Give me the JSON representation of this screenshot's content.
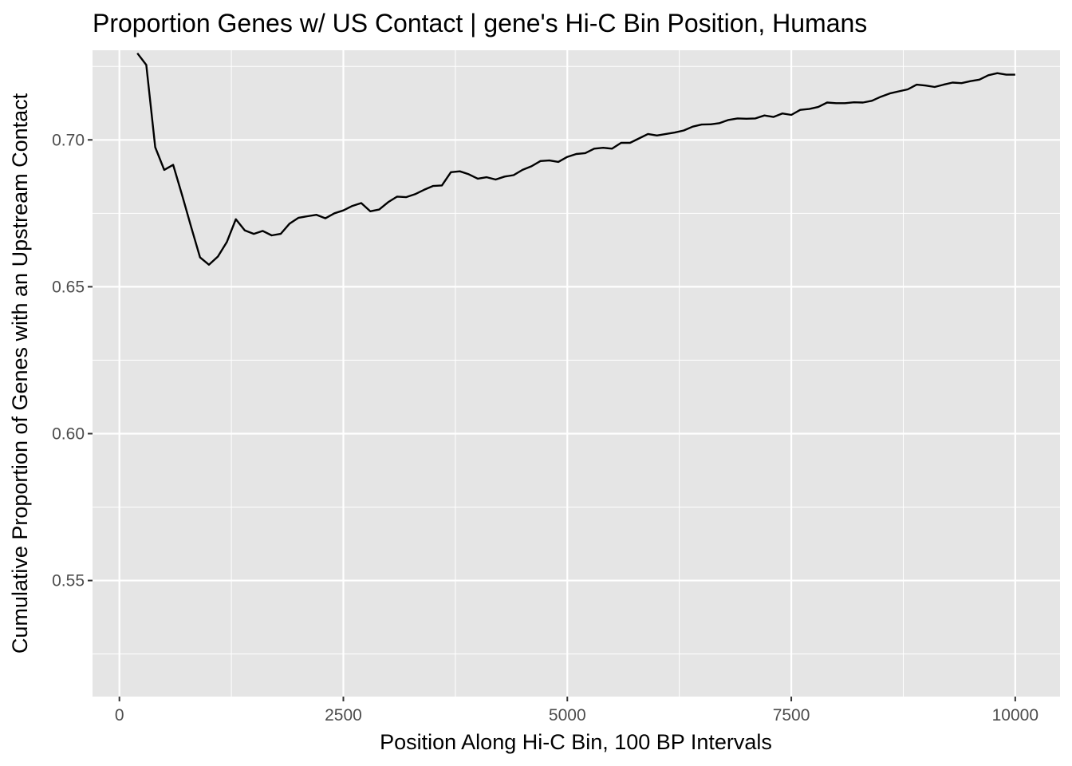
{
  "chart_data": {
    "type": "line",
    "title": "Proportion Genes w/ US Contact | gene's Hi-C Bin Position, Humans",
    "xlabel": "Position Along Hi-C Bin, 100 BP Intervals",
    "ylabel": "Cumulative Proportion of Genes with an Upstream Contact",
    "xlim": [
      -300,
      10500
    ],
    "ylim": [
      0.5105,
      0.7305
    ],
    "x_ticks": [
      {
        "value": 0,
        "label": "0"
      },
      {
        "value": 2500,
        "label": "2500"
      },
      {
        "value": 5000,
        "label": "5000"
      },
      {
        "value": 7500,
        "label": "7500"
      },
      {
        "value": 10000,
        "label": "10000"
      }
    ],
    "y_ticks": [
      {
        "value": 0.55,
        "label": "0.55"
      },
      {
        "value": 0.6,
        "label": "0.60"
      },
      {
        "value": 0.65,
        "label": "0.65"
      },
      {
        "value": 0.7,
        "label": "0.70"
      }
    ],
    "grid": true,
    "colors": {
      "panel": "#e5e5e5",
      "grid": "#ffffff",
      "line": "#000000",
      "tick_label": "#4d4d4d"
    },
    "series": [
      {
        "x": [
          200,
          300,
          400,
          500,
          600,
          700,
          800,
          900,
          1000,
          1100,
          1200,
          1300,
          1400,
          1500,
          1600,
          1700,
          1800,
          1900,
          2000,
          2100,
          2200,
          2300,
          2400,
          2500,
          2600,
          2700,
          2800,
          2900,
          3000,
          3100,
          3200,
          3300,
          3400,
          3500,
          3600,
          3700,
          3800,
          3900,
          4000,
          4100,
          4200,
          4300,
          4400,
          4500,
          4600,
          4700,
          4800,
          4900,
          5000,
          5100,
          5200,
          5300,
          5400,
          5500,
          5600,
          5700,
          5800,
          5900,
          6000,
          6100,
          6200,
          6300,
          6400,
          6500,
          6600,
          6700,
          6800,
          6900,
          7000,
          7100,
          7200,
          7300,
          7400,
          7500,
          7600,
          7700,
          7800,
          7900,
          8000,
          8100,
          8200,
          8300,
          8400,
          8500,
          8600,
          8700,
          8800,
          8900,
          9000,
          9100,
          9200,
          9300,
          9400,
          9500,
          9600,
          9700,
          9800,
          9900,
          10000
        ],
        "y": [
          0.7295,
          0.7255,
          0.6975,
          0.6898,
          0.6915,
          0.6812,
          0.6705,
          0.66,
          0.6575,
          0.6603,
          0.6653,
          0.673,
          0.6692,
          0.668,
          0.669,
          0.6675,
          0.668,
          0.6715,
          0.6735,
          0.674,
          0.6745,
          0.6733,
          0.675,
          0.676,
          0.6775,
          0.6785,
          0.6757,
          0.6763,
          0.6788,
          0.6807,
          0.6805,
          0.6815,
          0.683,
          0.6843,
          0.6845,
          0.689,
          0.6893,
          0.6883,
          0.6868,
          0.6873,
          0.6865,
          0.6875,
          0.688,
          0.6898,
          0.691,
          0.6928,
          0.693,
          0.6925,
          0.6942,
          0.6952,
          0.6955,
          0.697,
          0.6973,
          0.697,
          0.699,
          0.699,
          0.7005,
          0.702,
          0.7015,
          0.702,
          0.7025,
          0.7032,
          0.7045,
          0.7052,
          0.7053,
          0.7057,
          0.7068,
          0.7073,
          0.7072,
          0.7073,
          0.7083,
          0.7078,
          0.709,
          0.7085,
          0.7102,
          0.7105,
          0.7112,
          0.7127,
          0.7125,
          0.7125,
          0.7128,
          0.7127,
          0.7133,
          0.7147,
          0.7158,
          0.7165,
          0.7172,
          0.7188,
          0.7185,
          0.718,
          0.7188,
          0.7195,
          0.7193,
          0.72,
          0.7205,
          0.722,
          0.7227,
          0.7222,
          0.7222
        ]
      }
    ]
  }
}
